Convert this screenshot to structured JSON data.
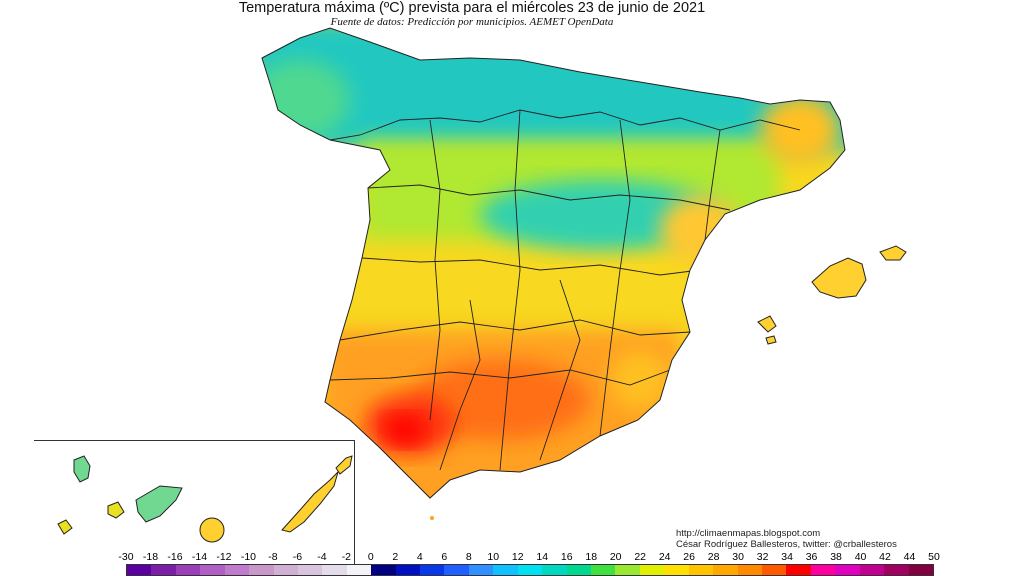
{
  "title": "Temperatura máxima (ºC) prevista para el miércoles 23 de junio de 2021",
  "subtitle": "Fuente de datos: Predicción por municipios. AEMET OpenData",
  "credits": {
    "url": "http://climaenmapas.blogspot.com",
    "author": "César Rodríguez Ballesteros, twitter: @crballesteros"
  },
  "legend": {
    "ticks": [
      "-30",
      "-18",
      "-16",
      "-14",
      "-12",
      "-10",
      "-8",
      "-6",
      "-4",
      "-2",
      "0",
      "2",
      "4",
      "6",
      "8",
      "10",
      "12",
      "14",
      "16",
      "18",
      "20",
      "22",
      "24",
      "26",
      "28",
      "30",
      "32",
      "34",
      "36",
      "38",
      "40",
      "42",
      "44",
      "50"
    ],
    "colors": [
      "#5a00a0",
      "#7b1fa8",
      "#9b3fb8",
      "#b060c4",
      "#c07ccc",
      "#c898c8",
      "#d0b0d4",
      "#d8c4dc",
      "#e4dcea",
      "#f4f4f8",
      "#000080",
      "#0010c0",
      "#0838e8",
      "#2060ff",
      "#3090ff",
      "#10c0ff",
      "#00e0f0",
      "#00d8c0",
      "#00d890",
      "#40e040",
      "#9be830",
      "#e0f000",
      "#ffe000",
      "#ffc400",
      "#ffa800",
      "#ff8a00",
      "#ff5a00",
      "#ff0000",
      "#ff00a0",
      "#e000c0",
      "#c00090",
      "#a00060",
      "#800040"
    ]
  },
  "map_colors": {
    "coast_north": "#20c0c0",
    "mountain": "#40d0b0",
    "meseta": "#d8ec20",
    "center": "#f8d820",
    "south": "#ffa020",
    "hot": "#ff4010",
    "hottest": "#ff1010",
    "canarias": "#e8e020",
    "border": "#222222"
  }
}
